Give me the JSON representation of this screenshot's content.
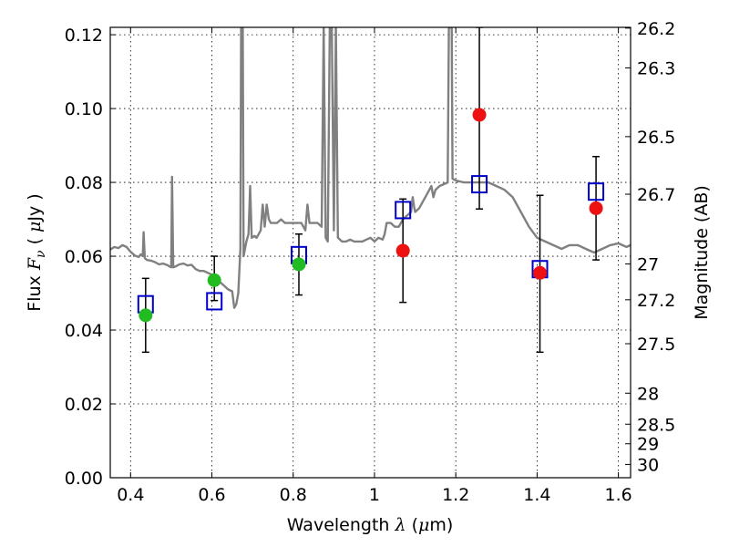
{
  "chart_data": {
    "type": "scatter",
    "title": "",
    "xlabel": {
      "prefix": "Wavelength  ",
      "symbol": "λ",
      "unit_open": " (",
      "unit_mu": "μ",
      "unit_rest": "m)"
    },
    "ylabel": {
      "prefix": "Flux  ",
      "symbol": "F",
      "subscript": "ν",
      "unit_open": "  ( ",
      "unit_mu": "μ",
      "unit_rest": "Jy )"
    },
    "y2label": "Magnitude (AB)",
    "xlim": [
      0.35,
      1.63
    ],
    "ylim": [
      0.0,
      0.122
    ],
    "grid": true,
    "x_ticks": [
      {
        "value": 0.4,
        "label": "0.4"
      },
      {
        "value": 0.6,
        "label": "0.6"
      },
      {
        "value": 0.8,
        "label": "0.8"
      },
      {
        "value": 1.0,
        "label": "1"
      },
      {
        "value": 1.2,
        "label": "1.2"
      },
      {
        "value": 1.4,
        "label": "1.4"
      },
      {
        "value": 1.6,
        "label": "1.6"
      }
    ],
    "y_ticks": [
      {
        "value": 0.0,
        "label": "0.00"
      },
      {
        "value": 0.02,
        "label": "0.02"
      },
      {
        "value": 0.04,
        "label": "0.04"
      },
      {
        "value": 0.06,
        "label": "0.06"
      },
      {
        "value": 0.08,
        "label": "0.08"
      },
      {
        "value": 0.1,
        "label": "0.10"
      },
      {
        "value": 0.12,
        "label": "0.12"
      }
    ],
    "mag_ticks": [
      {
        "label": "26.2",
        "flux": 0.1218
      },
      {
        "label": "26.3",
        "flux": 0.111
      },
      {
        "label": "26.5",
        "flux": 0.0924
      },
      {
        "label": "26.7",
        "flux": 0.0768
      },
      {
        "label": "27",
        "flux": 0.0579
      },
      {
        "label": "27.2",
        "flux": 0.0482
      },
      {
        "label": "27.5",
        "flux": 0.0363
      },
      {
        "label": "28",
        "flux": 0.0229
      },
      {
        "label": "28.5",
        "flux": 0.0145
      },
      {
        "label": "29",
        "flux": 0.0092
      },
      {
        "label": "30",
        "flux": 0.0036
      }
    ],
    "model_spectrum": {
      "color": "#808080",
      "points": [
        [
          0.35,
          0.0618
        ],
        [
          0.36,
          0.0625
        ],
        [
          0.37,
          0.0622
        ],
        [
          0.38,
          0.063
        ],
        [
          0.39,
          0.0625
        ],
        [
          0.4,
          0.0612
        ],
        [
          0.41,
          0.0602
        ],
        [
          0.42,
          0.0598
        ],
        [
          0.425,
          0.0605
        ],
        [
          0.43,
          0.06
        ],
        [
          0.432,
          0.0665
        ],
        [
          0.435,
          0.0595
        ],
        [
          0.44,
          0.059
        ],
        [
          0.45,
          0.0588
        ],
        [
          0.46,
          0.0584
        ],
        [
          0.47,
          0.0578
        ],
        [
          0.48,
          0.058
        ],
        [
          0.49,
          0.0576
        ],
        [
          0.5,
          0.057
        ],
        [
          0.502,
          0.0815
        ],
        [
          0.505,
          0.057
        ],
        [
          0.51,
          0.0572
        ],
        [
          0.52,
          0.0578
        ],
        [
          0.53,
          0.058
        ],
        [
          0.54,
          0.0575
        ],
        [
          0.55,
          0.0577
        ],
        [
          0.56,
          0.0565
        ],
        [
          0.57,
          0.056
        ],
        [
          0.58,
          0.056
        ],
        [
          0.59,
          0.0555
        ],
        [
          0.6,
          0.055
        ],
        [
          0.61,
          0.0545
        ],
        [
          0.62,
          0.053
        ],
        [
          0.63,
          0.052
        ],
        [
          0.64,
          0.051
        ],
        [
          0.65,
          0.0505
        ],
        [
          0.655,
          0.046
        ],
        [
          0.66,
          0.047
        ],
        [
          0.665,
          0.05
        ],
        [
          0.67,
          0.062
        ],
        [
          0.672,
          0.122
        ],
        [
          0.676,
          0.122
        ],
        [
          0.678,
          0.06
        ],
        [
          0.685,
          0.064
        ],
        [
          0.69,
          0.066
        ],
        [
          0.694,
          0.079
        ],
        [
          0.698,
          0.065
        ],
        [
          0.705,
          0.0655
        ],
        [
          0.71,
          0.065
        ],
        [
          0.72,
          0.067
        ],
        [
          0.725,
          0.074
        ],
        [
          0.73,
          0.068
        ],
        [
          0.735,
          0.074
        ],
        [
          0.74,
          0.07
        ],
        [
          0.745,
          0.069
        ],
        [
          0.75,
          0.069
        ],
        [
          0.76,
          0.069
        ],
        [
          0.77,
          0.07
        ],
        [
          0.78,
          0.069
        ],
        [
          0.79,
          0.069
        ],
        [
          0.8,
          0.069
        ],
        [
          0.81,
          0.069
        ],
        [
          0.82,
          0.069
        ],
        [
          0.83,
          0.067
        ],
        [
          0.835,
          0.074
        ],
        [
          0.84,
          0.069
        ],
        [
          0.85,
          0.069
        ],
        [
          0.86,
          0.069
        ],
        [
          0.87,
          0.068
        ],
        [
          0.875,
          0.122
        ],
        [
          0.88,
          0.065
        ],
        [
          0.885,
          0.064
        ],
        [
          0.89,
          0.122
        ],
        [
          0.895,
          0.122
        ],
        [
          0.9,
          0.067
        ],
        [
          0.905,
          0.122
        ],
        [
          0.91,
          0.065
        ],
        [
          0.92,
          0.064
        ],
        [
          0.93,
          0.064
        ],
        [
          0.94,
          0.0645
        ],
        [
          0.95,
          0.064
        ],
        [
          0.96,
          0.064
        ],
        [
          0.97,
          0.064
        ],
        [
          0.98,
          0.0645
        ],
        [
          0.99,
          0.065
        ],
        [
          1.0,
          0.064
        ],
        [
          1.01,
          0.065
        ],
        [
          1.02,
          0.0645
        ],
        [
          1.025,
          0.066
        ],
        [
          1.03,
          0.069
        ],
        [
          1.04,
          0.069
        ],
        [
          1.05,
          0.068
        ],
        [
          1.06,
          0.068
        ],
        [
          1.07,
          0.07
        ],
        [
          1.08,
          0.071
        ],
        [
          1.09,
          0.072
        ],
        [
          1.094,
          0.076
        ],
        [
          1.098,
          0.073
        ],
        [
          1.1,
          0.072
        ],
        [
          1.11,
          0.073
        ],
        [
          1.12,
          0.075
        ],
        [
          1.13,
          0.077
        ],
        [
          1.14,
          0.079
        ],
        [
          1.145,
          0.076
        ],
        [
          1.15,
          0.078
        ],
        [
          1.16,
          0.079
        ],
        [
          1.18,
          0.08
        ],
        [
          1.183,
          0.122
        ],
        [
          1.19,
          0.122
        ],
        [
          1.192,
          0.081
        ],
        [
          1.2,
          0.0805
        ],
        [
          1.22,
          0.08
        ],
        [
          1.25,
          0.08
        ],
        [
          1.28,
          0.08
        ],
        [
          1.3,
          0.079
        ],
        [
          1.32,
          0.078
        ],
        [
          1.34,
          0.076
        ],
        [
          1.36,
          0.072
        ],
        [
          1.38,
          0.068
        ],
        [
          1.4,
          0.065
        ],
        [
          1.42,
          0.064
        ],
        [
          1.44,
          0.063
        ],
        [
          1.46,
          0.062
        ],
        [
          1.48,
          0.063
        ],
        [
          1.5,
          0.063
        ],
        [
          1.52,
          0.062
        ],
        [
          1.54,
          0.061
        ],
        [
          1.56,
          0.062
        ],
        [
          1.58,
          0.063
        ],
        [
          1.6,
          0.0635
        ],
        [
          1.62,
          0.0625
        ],
        [
          1.63,
          0.063
        ]
      ]
    },
    "series": [
      {
        "marker": "open-square",
        "color": "#0000cc",
        "points": [
          {
            "x": 0.437,
            "y": 0.047
          },
          {
            "x": 0.606,
            "y": 0.0478
          },
          {
            "x": 0.814,
            "y": 0.0603
          },
          {
            "x": 1.07,
            "y": 0.0725
          },
          {
            "x": 1.258,
            "y": 0.0795
          },
          {
            "x": 1.407,
            "y": 0.0565
          },
          {
            "x": 1.545,
            "y": 0.0775
          }
        ]
      },
      {
        "marker": "filled-circle",
        "color": "#22bb22",
        "points": [
          {
            "x": 0.437,
            "y": 0.044,
            "err_low": 0.034,
            "err_high": 0.054
          },
          {
            "x": 0.606,
            "y": 0.0535,
            "err_low": 0.048,
            "err_high": 0.06
          },
          {
            "x": 0.814,
            "y": 0.0578,
            "err_low": 0.0495,
            "err_high": 0.066
          }
        ]
      },
      {
        "marker": "filled-circle",
        "color": "#ee1111",
        "points": [
          {
            "x": 1.07,
            "y": 0.0615,
            "err_low": 0.0475,
            "err_high": 0.0755
          },
          {
            "x": 1.258,
            "y": 0.0983,
            "err_low": 0.0728,
            "err_high": 0.122
          },
          {
            "x": 1.407,
            "y": 0.0555,
            "err_low": 0.034,
            "err_high": 0.0765
          },
          {
            "x": 1.545,
            "y": 0.073,
            "err_low": 0.059,
            "err_high": 0.087
          }
        ]
      }
    ]
  }
}
